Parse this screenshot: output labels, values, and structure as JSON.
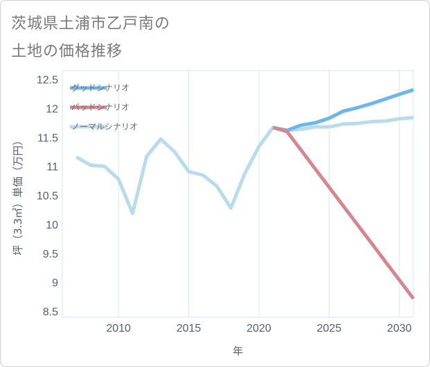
{
  "title": {
    "line1": "茨城県土浦市乙戸南の",
    "line2": "土地の価格推移"
  },
  "colors": {
    "good": "#6ab7f0",
    "bad": "#d8868e",
    "normal": "#b8dcea",
    "grid": "#d6e6f0",
    "axis": "#555f6b"
  },
  "chart_data": {
    "type": "line",
    "title": "茨城県土浦市乙戸南の土地の価格推移",
    "xlabel": "年",
    "ylabel": "坪（3.3㎡）単価（万円）",
    "xlim": [
      2006,
      2031
    ],
    "ylim": [
      8.4,
      12.65
    ],
    "xticks": [
      2010,
      2015,
      2020,
      2025,
      2030
    ],
    "yticks": [
      8.5,
      9,
      9.5,
      10,
      10.5,
      11,
      11.5,
      12,
      12.5
    ],
    "xtick_labels": [
      "2010",
      "2015",
      "2020",
      "2025",
      "2030"
    ],
    "ytick_labels": [
      "8.5",
      "9",
      "9.5",
      "10",
      "10.5",
      "11",
      "11.5",
      "12",
      "12.5"
    ],
    "legend_position": "top-left",
    "series": [
      {
        "name": "グッドシナリオ",
        "key": "good",
        "x": [
          2021,
          2022,
          2023,
          2024,
          2025,
          2026,
          2027,
          2028,
          2029,
          2030,
          2031
        ],
        "y": [
          11.67,
          11.62,
          11.71,
          11.75,
          11.83,
          11.95,
          12.01,
          12.08,
          12.16,
          12.24,
          12.32
        ]
      },
      {
        "name": "バッドシナリオ",
        "key": "bad",
        "x": [
          2021,
          2022,
          2023,
          2024,
          2025,
          2026,
          2027,
          2028,
          2029,
          2030,
          2031
        ],
        "y": [
          11.67,
          11.6,
          11.28,
          10.96,
          10.64,
          10.32,
          10.0,
          9.68,
          9.36,
          9.04,
          8.72
        ]
      },
      {
        "name": "ノーマルシナリオ",
        "key": "normal",
        "x": [
          2007,
          2008,
          2009,
          2010,
          2011,
          2012,
          2013,
          2014,
          2015,
          2016,
          2017,
          2018,
          2019,
          2020,
          2021,
          2022,
          2023,
          2024,
          2025,
          2026,
          2027,
          2028,
          2029,
          2030,
          2031
        ],
        "y": [
          11.16,
          11.02,
          11.0,
          10.78,
          10.19,
          11.17,
          11.47,
          11.25,
          10.91,
          10.85,
          10.66,
          10.28,
          10.88,
          11.34,
          11.67,
          11.62,
          11.64,
          11.68,
          11.68,
          11.73,
          11.74,
          11.77,
          11.78,
          11.82,
          11.84
        ]
      }
    ]
  }
}
